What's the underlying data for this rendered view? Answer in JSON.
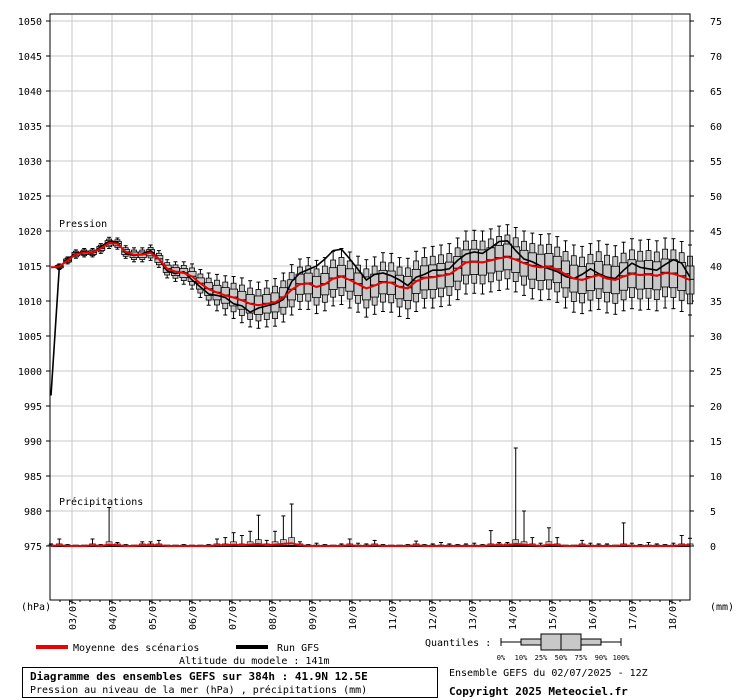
{
  "chart_data": {
    "type": "line",
    "subtype": "ensemble-boxplot",
    "title": "Diagramme des ensembles GEFS sur 384h : 41.9N 12.5E",
    "subtitle": "Pression au niveau de la mer (hPa) , précipitations (mm)",
    "pressure_label": "Pression",
    "precip_label": "Précipitations",
    "left_unit": "(hPa)",
    "right_unit": "(mm)",
    "left_ticks": [
      975,
      980,
      985,
      990,
      995,
      1000,
      1005,
      1010,
      1015,
      1020,
      1025,
      1030,
      1035,
      1040,
      1045,
      1050
    ],
    "right_ticks": [
      0,
      5,
      10,
      15,
      20,
      25,
      30,
      35,
      40,
      45,
      50,
      55,
      60,
      65,
      70,
      75
    ],
    "x_labels": [
      "03/07",
      "04/07",
      "05/07",
      "06/07",
      "07/07",
      "08/07",
      "09/07",
      "10/07",
      "11/07",
      "12/07",
      "13/07",
      "14/07",
      "15/07",
      "16/07",
      "17/07",
      "18/07"
    ],
    "grid": true,
    "legend": {
      "mean_label": "Moyenne des scénarios",
      "run_label": "Run GFS",
      "mean_color": "#ee0000",
      "run_color": "#000000"
    },
    "quantiles_label": "Quantiles :",
    "quantile_labels": [
      "0%",
      "10%",
      "25%",
      "50%",
      "75%",
      "90%",
      "100%"
    ],
    "altitude": "Altitude du modele : 141m",
    "ensemble": "Ensemble GEFS du 02/07/2025 - 12Z",
    "copyright": "Copyright 2025 Meteociel.fr",
    "pressure_mean": [
      1014.8,
      1014.9,
      1015.8,
      1016.7,
      1016.9,
      1016.9,
      1017.5,
      1018.3,
      1018.2,
      1017.0,
      1016.6,
      1016.6,
      1016.9,
      1016.0,
      1014.6,
      1014.2,
      1014.0,
      1013.5,
      1012.5,
      1011.7,
      1011.2,
      1010.8,
      1010.5,
      1010.1,
      1009.6,
      1009.4,
      1009.6,
      1009.8,
      1010.5,
      1011.6,
      1012.4,
      1012.5,
      1012.0,
      1012.4,
      1013.2,
      1013.5,
      1013.0,
      1012.4,
      1011.8,
      1012.2,
      1012.7,
      1012.6,
      1012.0,
      1011.8,
      1012.8,
      1013.3,
      1013.4,
      1013.6,
      1013.8,
      1014.6,
      1015.5,
      1015.6,
      1015.5,
      1015.8,
      1016.1,
      1016.3,
      1015.9,
      1015.4,
      1015.0,
      1014.8,
      1014.9,
      1014.5,
      1013.8,
      1013.2,
      1013.0,
      1013.4,
      1013.7,
      1013.2,
      1013.0,
      1013.5,
      1013.9,
      1013.7,
      1013.8,
      1013.6,
      1014.0,
      1013.9,
      1013.5,
      1013.0
    ],
    "pressure_run": [
      1015.0,
      1014.8,
      1016.0,
      1016.8,
      1017.0,
      1016.8,
      1017.8,
      1018.5,
      1018.4,
      1016.8,
      1016.5,
      1016.7,
      1017.2,
      1016.0,
      1014.3,
      1013.9,
      1014.2,
      1013.0,
      1012.0,
      1011.0,
      1010.8,
      1010.5,
      1009.6,
      1009.3,
      1008.4,
      1009.0,
      1009.3,
      1009.6,
      1010.2,
      1012.8,
      1014.0,
      1014.5,
      1015.0,
      1016.0,
      1017.2,
      1017.4,
      1016.0,
      1014.5,
      1013.0,
      1013.8,
      1014.0,
      1013.6,
      1013.0,
      1012.2,
      1013.4,
      1013.8,
      1014.4,
      1014.4,
      1014.6,
      1015.8,
      1016.7,
      1017.0,
      1016.8,
      1017.6,
      1018.5,
      1018.6,
      1017.2,
      1016.0,
      1015.6,
      1015.0,
      1014.6,
      1014.2,
      1013.5,
      1013.2,
      1013.8,
      1014.6,
      1013.9,
      1013.4,
      1013.2,
      1014.4,
      1015.4,
      1014.8,
      1014.6,
      1014.4,
      1015.2,
      1015.9,
      1015.4,
      1013.4
    ],
    "pressure_spread": [
      0.4,
      0.4,
      0.5,
      0.6,
      0.6,
      0.6,
      0.7,
      0.8,
      0.8,
      0.9,
      1.0,
      1.0,
      1.1,
      1.2,
      1.3,
      1.4,
      1.6,
      1.8,
      2.0,
      2.3,
      2.6,
      2.8,
      3.0,
      3.2,
      3.3,
      3.3,
      3.3,
      3.4,
      3.5,
      3.6,
      3.6,
      3.7,
      3.8,
      3.8,
      3.9,
      4.0,
      4.0,
      4.0,
      4.1,
      4.1,
      4.2,
      4.2,
      4.2,
      4.3,
      4.3,
      4.3,
      4.4,
      4.4,
      4.4,
      4.4,
      4.5,
      4.5,
      4.5,
      4.5,
      4.6,
      4.6,
      4.6,
      4.6,
      4.7,
      4.7,
      4.7,
      4.7,
      4.8,
      4.8,
      4.8,
      4.8,
      4.9,
      4.9,
      4.9,
      4.9,
      5.0,
      5.0,
      5.0,
      5.0,
      5.0,
      5.0,
      5.0,
      5.0
    ],
    "precip_max": [
      0.3,
      1.0,
      0.2,
      0.1,
      0.1,
      1.0,
      0.2,
      5.5,
      0.5,
      0.2,
      0.1,
      0.6,
      0.6,
      0.8,
      0.1,
      0.1,
      0.2,
      0.1,
      0.1,
      0.2,
      1.0,
      1.2,
      1.9,
      1.5,
      2.1,
      4.4,
      0.8,
      2.1,
      4.3,
      6.0,
      0.6,
      0.2,
      0.4,
      0.2,
      0.1,
      0.3,
      1.0,
      0.4,
      0.3,
      0.8,
      0.2,
      0.1,
      0.1,
      0.2,
      0.7,
      0.2,
      0.3,
      0.5,
      0.3,
      0.2,
      0.3,
      0.4,
      0.2,
      2.2,
      0.5,
      0.5,
      14.0,
      5.0,
      1.2,
      0.4,
      2.6,
      1.2,
      0.1,
      0.1,
      0.8,
      0.4,
      0.3,
      0.3,
      0.1,
      3.3,
      0.4,
      0.2,
      0.5,
      0.3,
      0.2,
      0.4,
      1.5,
      1.1
    ],
    "precip_mean": [
      0.0,
      0.1,
      0.0,
      0.0,
      0.0,
      0.1,
      0.0,
      0.2,
      0.1,
      0.0,
      0.0,
      0.1,
      0.1,
      0.1,
      0.0,
      0.0,
      0.0,
      0.0,
      0.0,
      0.0,
      0.1,
      0.1,
      0.2,
      0.1,
      0.2,
      0.3,
      0.1,
      0.2,
      0.3,
      0.4,
      0.1,
      0.0,
      0.0,
      0.0,
      0.0,
      0.0,
      0.1,
      0.0,
      0.0,
      0.1,
      0.0,
      0.0,
      0.0,
      0.0,
      0.1,
      0.0,
      0.0,
      0.0,
      0.0,
      0.0,
      0.0,
      0.0,
      0.0,
      0.1,
      0.1,
      0.1,
      0.3,
      0.2,
      0.1,
      0.0,
      0.2,
      0.1,
      0.0,
      0.0,
      0.1,
      0.0,
      0.0,
      0.0,
      0.0,
      0.1,
      0.0,
      0.0,
      0.0,
      0.0,
      0.0,
      0.0,
      0.1,
      0.1
    ]
  }
}
